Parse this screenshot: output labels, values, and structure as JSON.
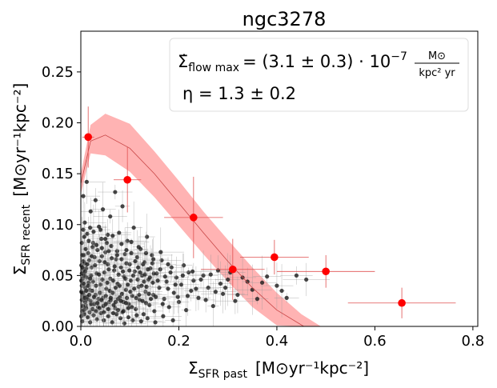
{
  "chart_data": {
    "type": "scatter",
    "title": "ngc3278",
    "xlabel": {
      "sym": "Σ",
      "sub": "SFR past",
      "units": "[M⊙yr⁻¹kpc⁻²]"
    },
    "ylabel": {
      "sym": "Σ",
      "sub": "SFR recent",
      "units": "[M⊙yr⁻¹kpc⁻²]"
    },
    "xlim": [
      0.0,
      0.81
    ],
    "ylim": [
      0.0,
      0.29
    ],
    "x_ticks": [
      "0.0",
      "0.2",
      "0.4",
      "0.6",
      "0.8"
    ],
    "x_tick_values": [
      0.0,
      0.2,
      0.4,
      0.6,
      0.8
    ],
    "y_ticks": [
      "0.00",
      "0.05",
      "0.10",
      "0.15",
      "0.20",
      "0.25"
    ],
    "y_tick_values": [
      0.0,
      0.05,
      0.1,
      0.15,
      0.2,
      0.25
    ],
    "annotation": {
      "line1_sym": "Σ̇",
      "line1_sub": "flow max",
      "line1_value": "= (3.1 ± 0.3) · 10",
      "line1_exp": "−7",
      "line1_frac_num": "M⊙",
      "line1_frac_den": "kpc² yr",
      "line2": "η = 1.3 ± 0.2"
    },
    "colors": {
      "binned": "#ff0000",
      "band": "#ffb3b3",
      "model": "#c84646",
      "points": "#1a1a1a"
    },
    "model": {
      "sigma_flow_max": 3.1e-07,
      "eta": 1.3,
      "peak_x": 0.05,
      "peak_y": 0.188,
      "zero_x": 0.455
    },
    "band": {
      "x": [
        0.0,
        0.02,
        0.05,
        0.1,
        0.15,
        0.2,
        0.25,
        0.3,
        0.35,
        0.4,
        0.45,
        0.49,
        0.52
      ],
      "upper": [
        0.15,
        0.198,
        0.209,
        0.199,
        0.172,
        0.143,
        0.113,
        0.085,
        0.058,
        0.033,
        0.012,
        0.0,
        0.0
      ],
      "lower": [
        0.13,
        0.17,
        0.168,
        0.152,
        0.127,
        0.099,
        0.071,
        0.044,
        0.019,
        0.001,
        0.0,
        0.0,
        0.0
      ]
    },
    "model_curve": {
      "x": [
        0.0,
        0.02,
        0.05,
        0.1,
        0.15,
        0.2,
        0.25,
        0.3,
        0.35,
        0.4,
        0.455
      ],
      "y": [
        0.14,
        0.182,
        0.188,
        0.175,
        0.15,
        0.121,
        0.092,
        0.064,
        0.038,
        0.016,
        0.0
      ]
    },
    "binned_points": [
      {
        "x": 0.015,
        "y": 0.186,
        "xerr": 0.012,
        "yerr": 0.03
      },
      {
        "x": 0.095,
        "y": 0.144,
        "xerr": 0.028,
        "yerr": 0.032
      },
      {
        "x": 0.23,
        "y": 0.107,
        "xerr": 0.06,
        "yerr": 0.04
      },
      {
        "x": 0.31,
        "y": 0.056,
        "xerr": 0.065,
        "yerr": 0.03
      },
      {
        "x": 0.395,
        "y": 0.068,
        "xerr": 0.07,
        "yerr": 0.017
      },
      {
        "x": 0.5,
        "y": 0.054,
        "xerr": 0.1,
        "yerr": 0.016
      },
      {
        "x": 0.655,
        "y": 0.023,
        "xerr": 0.11,
        "yerr": 0.015
      }
    ],
    "scatter_points": [
      [
        0.002,
        0.04
      ],
      [
        0.004,
        0.055
      ],
      [
        0.006,
        0.03
      ],
      [
        0.008,
        0.062
      ],
      [
        0.01,
        0.021
      ],
      [
        0.003,
        0.015
      ],
      [
        0.012,
        0.048
      ],
      [
        0.015,
        0.072
      ],
      [
        0.018,
        0.036
      ],
      [
        0.02,
        0.025
      ],
      [
        0.022,
        0.058
      ],
      [
        0.025,
        0.044
      ],
      [
        0.028,
        0.068
      ],
      [
        0.03,
        0.031
      ],
      [
        0.032,
        0.052
      ],
      [
        0.035,
        0.019
      ],
      [
        0.038,
        0.064
      ],
      [
        0.04,
        0.041
      ],
      [
        0.042,
        0.086
      ],
      [
        0.045,
        0.028
      ],
      [
        0.048,
        0.053
      ],
      [
        0.05,
        0.073
      ],
      [
        0.052,
        0.037
      ],
      [
        0.055,
        0.061
      ],
      [
        0.058,
        0.024
      ],
      [
        0.06,
        0.047
      ],
      [
        0.062,
        0.079
      ],
      [
        0.065,
        0.033
      ],
      [
        0.068,
        0.055
      ],
      [
        0.07,
        0.018
      ],
      [
        0.072,
        0.066
      ],
      [
        0.075,
        0.042
      ],
      [
        0.078,
        0.092
      ],
      [
        0.08,
        0.029
      ],
      [
        0.082,
        0.058
      ],
      [
        0.085,
        0.014
      ],
      [
        0.088,
        0.049
      ],
      [
        0.09,
        0.071
      ],
      [
        0.092,
        0.036
      ],
      [
        0.095,
        0.084
      ],
      [
        0.098,
        0.022
      ],
      [
        0.1,
        0.061
      ],
      [
        0.102,
        0.045
      ],
      [
        0.105,
        0.03
      ],
      [
        0.108,
        0.097
      ],
      [
        0.11,
        0.054
      ],
      [
        0.112,
        0.017
      ],
      [
        0.115,
        0.068
      ],
      [
        0.118,
        0.039
      ],
      [
        0.12,
        0.026
      ],
      [
        0.122,
        0.076
      ],
      [
        0.125,
        0.05
      ],
      [
        0.128,
        0.012
      ],
      [
        0.13,
        0.063
      ],
      [
        0.132,
        0.034
      ],
      [
        0.135,
        0.088
      ],
      [
        0.138,
        0.046
      ],
      [
        0.14,
        0.021
      ],
      [
        0.142,
        0.057
      ],
      [
        0.145,
        0.07
      ],
      [
        0.148,
        0.031
      ],
      [
        0.15,
        0.015
      ],
      [
        0.155,
        0.052
      ],
      [
        0.16,
        0.038
      ],
      [
        0.165,
        0.065
      ],
      [
        0.17,
        0.027
      ],
      [
        0.175,
        0.044
      ],
      [
        0.18,
        0.019
      ],
      [
        0.185,
        0.058
      ],
      [
        0.19,
        0.033
      ],
      [
        0.195,
        0.048
      ],
      [
        0.2,
        0.024
      ],
      [
        0.205,
        0.041
      ],
      [
        0.21,
        0.06
      ],
      [
        0.215,
        0.016
      ],
      [
        0.22,
        0.053
      ],
      [
        0.225,
        0.035
      ],
      [
        0.23,
        0.045
      ],
      [
        0.24,
        0.028
      ],
      [
        0.25,
        0.05
      ],
      [
        0.26,
        0.038
      ],
      [
        0.27,
        0.02
      ],
      [
        0.28,
        0.055
      ],
      [
        0.29,
        0.032
      ],
      [
        0.3,
        0.046
      ],
      [
        0.315,
        0.025
      ],
      [
        0.33,
        0.048
      ],
      [
        0.35,
        0.036
      ],
      [
        0.37,
        0.043
      ],
      [
        0.4,
        0.04
      ],
      [
        0.42,
        0.028
      ],
      [
        0.46,
        0.046
      ],
      [
        0.005,
        0.128
      ],
      [
        0.012,
        0.142
      ],
      [
        0.02,
        0.113
      ],
      [
        0.008,
        0.102
      ],
      [
        0.03,
        0.124
      ],
      [
        0.045,
        0.115
      ],
      [
        0.06,
        0.108
      ],
      [
        0.07,
        0.132
      ],
      [
        0.085,
        0.118
      ],
      [
        0.04,
        0.095
      ],
      [
        0.055,
        0.09
      ],
      [
        0.025,
        0.082
      ],
      [
        0.001,
        0.01
      ],
      [
        0.003,
        0.005
      ],
      [
        0.007,
        0.012
      ],
      [
        0.014,
        0.009
      ],
      [
        0.019,
        0.004
      ],
      [
        0.026,
        0.011
      ],
      [
        0.033,
        0.007
      ],
      [
        0.041,
        0.013
      ],
      [
        0.047,
        0.006
      ],
      [
        0.056,
        0.01
      ],
      [
        0.064,
        0.004
      ],
      [
        0.073,
        0.012
      ],
      [
        0.081,
        0.008
      ],
      [
        0.089,
        0.003
      ],
      [
        0.097,
        0.009
      ],
      [
        0.106,
        0.006
      ],
      [
        0.114,
        0.011
      ],
      [
        0.123,
        0.005
      ],
      [
        0.136,
        0.008
      ],
      [
        0.152,
        0.004
      ],
      [
        0.168,
        0.01
      ],
      [
        0.188,
        0.006
      ],
      [
        0.001,
        0.034
      ],
      [
        0.002,
        0.026
      ],
      [
        0.004,
        0.047
      ],
      [
        0.006,
        0.07
      ],
      [
        0.009,
        0.038
      ],
      [
        0.011,
        0.057
      ],
      [
        0.013,
        0.029
      ],
      [
        0.016,
        0.043
      ],
      [
        0.017,
        0.065
      ],
      [
        0.021,
        0.05
      ],
      [
        0.023,
        0.035
      ],
      [
        0.024,
        0.078
      ],
      [
        0.027,
        0.022
      ],
      [
        0.029,
        0.06
      ],
      [
        0.031,
        0.04
      ],
      [
        0.034,
        0.075
      ],
      [
        0.036,
        0.027
      ],
      [
        0.037,
        0.051
      ],
      [
        0.039,
        0.033
      ],
      [
        0.043,
        0.069
      ],
      [
        0.044,
        0.046
      ],
      [
        0.046,
        0.02
      ],
      [
        0.049,
        0.063
      ],
      [
        0.051,
        0.03
      ],
      [
        0.053,
        0.082
      ],
      [
        0.054,
        0.043
      ],
      [
        0.057,
        0.056
      ],
      [
        0.059,
        0.035
      ],
      [
        0.061,
        0.026
      ],
      [
        0.063,
        0.067
      ],
      [
        0.066,
        0.045
      ],
      [
        0.067,
        0.021
      ],
      [
        0.069,
        0.059
      ],
      [
        0.071,
        0.038
      ],
      [
        0.074,
        0.074
      ],
      [
        0.076,
        0.027
      ],
      [
        0.077,
        0.051
      ],
      [
        0.079,
        0.04
      ],
      [
        0.083,
        0.066
      ],
      [
        0.084,
        0.032
      ],
      [
        0.086,
        0.054
      ],
      [
        0.087,
        0.024
      ],
      [
        0.091,
        0.047
      ],
      [
        0.093,
        0.062
      ],
      [
        0.094,
        0.028
      ],
      [
        0.096,
        0.041
      ],
      [
        0.099,
        0.055
      ],
      [
        0.101,
        0.034
      ],
      [
        0.103,
        0.072
      ],
      [
        0.104,
        0.019
      ],
      [
        0.107,
        0.05
      ],
      [
        0.109,
        0.037
      ],
      [
        0.111,
        0.064
      ],
      [
        0.113,
        0.028
      ],
      [
        0.116,
        0.046
      ],
      [
        0.117,
        0.058
      ],
      [
        0.119,
        0.031
      ],
      [
        0.121,
        0.053
      ],
      [
        0.124,
        0.04
      ],
      [
        0.126,
        0.025
      ],
      [
        0.127,
        0.061
      ],
      [
        0.129,
        0.044
      ],
      [
        0.131,
        0.051
      ],
      [
        0.133,
        0.023
      ],
      [
        0.134,
        0.039
      ],
      [
        0.137,
        0.056
      ],
      [
        0.139,
        0.032
      ],
      [
        0.141,
        0.048
      ],
      [
        0.143,
        0.027
      ],
      [
        0.146,
        0.062
      ],
      [
        0.147,
        0.043
      ],
      [
        0.149,
        0.052
      ],
      [
        0.153,
        0.029
      ],
      [
        0.157,
        0.045
      ],
      [
        0.162,
        0.056
      ],
      [
        0.167,
        0.022
      ],
      [
        0.172,
        0.049
      ],
      [
        0.178,
        0.037
      ],
      [
        0.183,
        0.053
      ],
      [
        0.193,
        0.041
      ],
      [
        0.198,
        0.029
      ],
      [
        0.208,
        0.05
      ],
      [
        0.218,
        0.03
      ],
      [
        0.228,
        0.054
      ],
      [
        0.235,
        0.037
      ],
      [
        0.245,
        0.046
      ],
      [
        0.255,
        0.026
      ],
      [
        0.265,
        0.051
      ],
      [
        0.275,
        0.034
      ],
      [
        0.285,
        0.042
      ],
      [
        0.295,
        0.038
      ],
      [
        0.305,
        0.053
      ],
      [
        0.32,
        0.031
      ],
      [
        0.34,
        0.044
      ],
      [
        0.36,
        0.027
      ],
      [
        0.38,
        0.049
      ],
      [
        0.41,
        0.035
      ],
      [
        0.44,
        0.05
      ],
      [
        0.002,
        0.082
      ],
      [
        0.005,
        0.095
      ],
      [
        0.007,
        0.088
      ],
      [
        0.01,
        0.076
      ],
      [
        0.013,
        0.091
      ],
      [
        0.016,
        0.084
      ],
      [
        0.019,
        0.097
      ],
      [
        0.022,
        0.069
      ],
      [
        0.026,
        0.093
      ],
      [
        0.032,
        0.08
      ],
      [
        0.037,
        0.098
      ],
      [
        0.043,
        0.077
      ],
      [
        0.05,
        0.086
      ],
      [
        0.057,
        0.074
      ],
      [
        0.065,
        0.089
      ],
      [
        0.074,
        0.07
      ],
      [
        0.083,
        0.081
      ],
      [
        0.093,
        0.075
      ],
      [
        0.103,
        0.083
      ],
      [
        0.118,
        0.078
      ],
      [
        0.133,
        0.072
      ],
      [
        0.148,
        0.066
      ],
      [
        0.163,
        0.073
      ],
      [
        0.178,
        0.061
      ],
      [
        0.004,
        0.02
      ],
      [
        0.006,
        0.016
      ],
      [
        0.009,
        0.024
      ],
      [
        0.011,
        0.018
      ],
      [
        0.014,
        0.027
      ],
      [
        0.018,
        0.014
      ],
      [
        0.021,
        0.022
      ],
      [
        0.024,
        0.017
      ],
      [
        0.027,
        0.029
      ],
      [
        0.031,
        0.015
      ],
      [
        0.034,
        0.023
      ],
      [
        0.038,
        0.018
      ],
      [
        0.042,
        0.026
      ],
      [
        0.047,
        0.014
      ],
      [
        0.051,
        0.022
      ],
      [
        0.056,
        0.017
      ],
      [
        0.061,
        0.028
      ],
      [
        0.066,
        0.013
      ],
      [
        0.071,
        0.024
      ],
      [
        0.076,
        0.016
      ],
      [
        0.082,
        0.025
      ],
      [
        0.087,
        0.015
      ],
      [
        0.092,
        0.023
      ],
      [
        0.097,
        0.018
      ],
      [
        0.001,
        0.06
      ],
      [
        0.003,
        0.07
      ],
      [
        0.005,
        0.064
      ],
      [
        0.007,
        0.05
      ],
      [
        0.001,
        0.045
      ],
      [
        0.002,
        0.052
      ],
      [
        0.003,
        0.058
      ],
      [
        0.004,
        0.033
      ],
      [
        0.006,
        0.042
      ],
      [
        0.008,
        0.028
      ],
      [
        0.009,
        0.054
      ],
      [
        0.011,
        0.035
      ],
      [
        0.013,
        0.061
      ],
      [
        0.015,
        0.04
      ],
      [
        0.017,
        0.031
      ],
      [
        0.019,
        0.047
      ]
    ]
  }
}
